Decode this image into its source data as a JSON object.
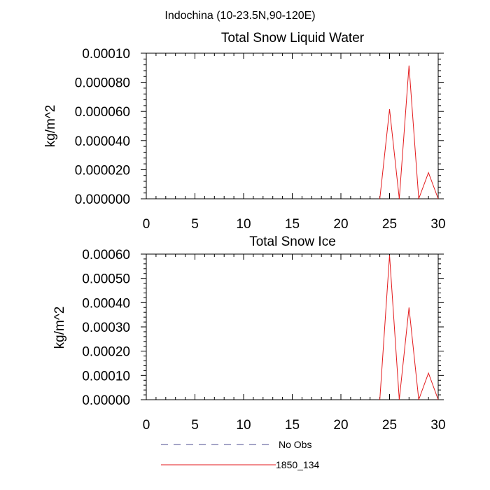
{
  "figure": {
    "title": "Indochina (10-23.5N,90-120E)"
  },
  "legend": {
    "entries": [
      {
        "label": "No Obs",
        "color": "#4b4b8f",
        "dash": "dashed"
      },
      {
        "label": "1850_134",
        "color": "#e31a1c",
        "dash": "solid"
      }
    ]
  },
  "chart_data": [
    {
      "type": "line",
      "title": "Total Snow Liquid Water",
      "xlabel": "",
      "ylabel": "kg/m^2",
      "xlim": [
        0,
        30
      ],
      "ylim": [
        0,
        0.0001
      ],
      "x_ticks": [
        "0",
        "5",
        "10",
        "15",
        "20",
        "25",
        "30"
      ],
      "x_tick_values": [
        0,
        5,
        10,
        15,
        20,
        25,
        30
      ],
      "y_ticks": [
        "0.000000",
        "0.000020",
        "0.000040",
        "0.000060",
        "0.000080",
        "0.00010"
      ],
      "y_tick_values": [
        0,
        2e-05,
        4e-05,
        6e-05,
        8e-05,
        0.0001
      ],
      "grid": false,
      "series": [
        {
          "name": "1850_134",
          "x": [
            24,
            25,
            26,
            27,
            28,
            29,
            30
          ],
          "y": [
            0,
            6.15e-05,
            0,
            9.15e-05,
            0,
            1.8e-05,
            0
          ]
        }
      ]
    },
    {
      "type": "line",
      "title": "Total Snow Ice",
      "xlabel": "",
      "ylabel": "kg/m^2",
      "xlim": [
        0,
        30
      ],
      "ylim": [
        0,
        0.0006
      ],
      "x_ticks": [
        "0",
        "5",
        "10",
        "15",
        "20",
        "25",
        "30"
      ],
      "x_tick_values": [
        0,
        5,
        10,
        15,
        20,
        25,
        30
      ],
      "y_ticks": [
        "0.00000",
        "0.00010",
        "0.00020",
        "0.00030",
        "0.00040",
        "0.00050",
        "0.00060"
      ],
      "y_tick_values": [
        0,
        0.0001,
        0.0002,
        0.0003,
        0.0004,
        0.0005,
        0.0006
      ],
      "grid": false,
      "series": [
        {
          "name": "1850_134",
          "x": [
            24,
            25,
            26,
            27,
            28,
            29,
            30
          ],
          "y": [
            0,
            0.000595,
            0,
            0.00038,
            0,
            0.00011,
            0
          ]
        }
      ]
    }
  ]
}
